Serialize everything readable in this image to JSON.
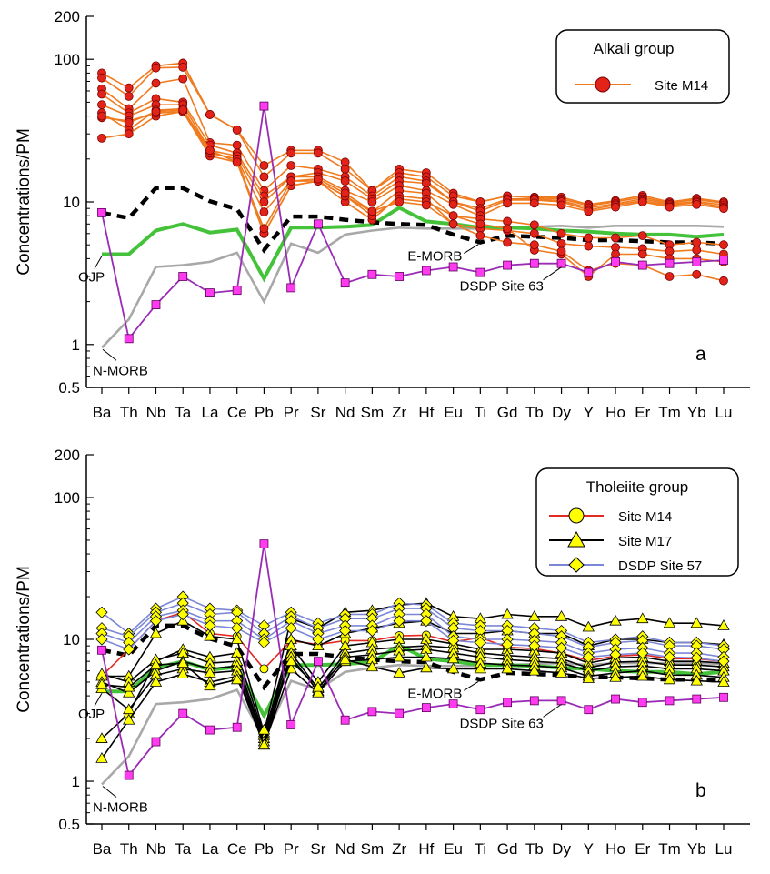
{
  "colors": {
    "alkali": "#f07a1e",
    "alkali_marker": "#e2231a",
    "m14_tholeiite": "#e22a24",
    "m17": "#000000",
    "dsdp57": "#7b87d6",
    "yellow_marker": "#ffff00",
    "dsdp63": "#9a2bb5",
    "dsdp63_marker": "#ff3bf0",
    "emorb": "#000000",
    "nmorb": "#a8a8a8",
    "ojp": "#43c23a"
  },
  "chart_data": [
    {
      "type": "line",
      "panel": "a",
      "ylabel": "Concentrations/PM",
      "y_scale": "log",
      "ylim": [
        0.5,
        200
      ],
      "y_ticks": [
        "0.5",
        "1",
        "10",
        "100",
        "200"
      ],
      "categories": [
        "Ba",
        "Th",
        "Nb",
        "Ta",
        "La",
        "Ce",
        "Pb",
        "Pr",
        "Sr",
        "Nd",
        "Sm",
        "Zr",
        "Hf",
        "Eu",
        "Ti",
        "Gd",
        "Tb",
        "Dy",
        "Y",
        "Ho",
        "Er",
        "Tm",
        "Yb",
        "Lu"
      ],
      "legend": {
        "title": "Alkali group",
        "entries": [
          "Site M14"
        ],
        "position": "top-right"
      },
      "annotations": {
        "ojp": "OJP",
        "emorb": "E-MORB",
        "nmorb": "N-MORB",
        "dsdp63": "DSDP Site 63"
      },
      "reference": {
        "ojp": [
          4.3,
          4.3,
          6.3,
          7.0,
          6.1,
          6.4,
          2.9,
          6.6,
          6.6,
          6.7,
          6.9,
          9.1,
          7.3,
          7.0,
          6.6,
          6.6,
          6.5,
          6.3,
          6.2,
          6.0,
          5.9,
          5.9,
          5.7,
          5.9
        ],
        "emorb": [
          8.4,
          7.7,
          12.5,
          12.5,
          10.1,
          8.9,
          4.6,
          7.9,
          7.9,
          7.5,
          7.2,
          7.0,
          6.9,
          5.9,
          5.2,
          5.8,
          5.7,
          5.6,
          5.4,
          5.4,
          5.3,
          5.2,
          5.2,
          5.1
        ],
        "nmorb": [
          0.95,
          1.5,
          3.5,
          3.6,
          3.8,
          4.4,
          2.0,
          5.1,
          4.4,
          5.9,
          6.3,
          6.6,
          6.5,
          6.5,
          6.5,
          6.6,
          6.7,
          6.8,
          6.6,
          6.8,
          6.8,
          6.8,
          6.8,
          6.7
        ],
        "dsdp63": [
          8.4,
          1.1,
          1.9,
          3.0,
          2.3,
          2.4,
          47,
          2.5,
          7.0,
          2.7,
          3.1,
          3.0,
          3.3,
          3.5,
          3.2,
          3.6,
          3.7,
          3.7,
          3.2,
          3.8,
          3.6,
          3.7,
          3.8,
          3.9
        ]
      },
      "series": [
        {
          "group": "Alkali Site M14",
          "values": [
            80,
            63,
            90,
            94,
            41,
            32,
            18,
            23,
            23,
            19,
            12,
            17,
            16,
            11.5,
            10,
            11,
            10.8,
            10.8,
            9.6,
            10.2,
            11.1,
            10.0,
            10.6,
            10.0
          ]
        },
        {
          "group": "Alkali Site M14",
          "values": [
            74,
            55,
            87,
            88,
            41,
            32,
            15,
            22,
            22,
            17,
            12,
            16,
            15,
            11,
            10,
            11,
            10.7,
            10.5,
            9.4,
            10,
            10.8,
            9.8,
            10.4,
            9.8
          ]
        },
        {
          "group": "Alkali Site M14",
          "values": [
            62,
            45,
            68,
            73,
            26,
            25,
            12,
            18,
            17,
            15,
            11,
            15,
            14,
            10,
            9,
            10.5,
            10.5,
            10.2,
            9.1,
            9.7,
            10.5,
            9.6,
            10.1,
            9.5
          ]
        },
        {
          "group": "Alkali Site M14",
          "values": [
            57,
            42,
            53,
            50,
            25,
            22,
            11,
            15,
            16,
            14,
            10.5,
            14,
            13.5,
            10,
            8.6,
            10.3,
            10.3,
            10,
            8.8,
            9.5,
            10.2,
            9.4,
            9.9,
            9.2
          ]
        },
        {
          "group": "Alkali Site M14",
          "values": [
            48,
            40,
            48,
            48,
            23,
            21,
            10,
            15,
            15,
            12,
            10,
            13,
            12,
            9.6,
            8,
            9.8,
            9.8,
            9.5,
            8.6,
            9.2,
            10,
            9.2,
            9.6,
            9.0
          ]
        },
        {
          "group": "Alkali Site M14",
          "values": [
            42,
            32,
            44,
            45,
            22,
            20,
            8.5,
            14,
            14,
            11,
            8.5,
            12,
            11.5,
            8,
            7.6,
            7.3,
            6.9,
            6,
            5.6,
            5.6,
            5.8,
            5.0,
            5.2,
            5.0
          ]
        },
        {
          "group": "Alkali Site M14",
          "values": [
            28,
            30,
            40,
            43,
            21,
            19,
            6,
            13,
            14,
            10,
            7.5,
            11,
            10.5,
            7,
            6.5,
            6.3,
            6,
            5.1,
            4.9,
            4.8,
            4.7,
            4.5,
            4.6,
            4.3
          ]
        },
        {
          "group": "Alkali Site M14",
          "values": [
            39,
            37,
            42,
            43,
            22,
            20,
            6,
            13,
            14,
            11,
            8,
            10.5,
            10,
            8,
            7,
            6.5,
            4.6,
            4.3,
            3.0,
            4.3,
            4.3,
            4.0,
            4.0,
            3.8
          ]
        },
        {
          "group": "Alkali Site M14",
          "values": [
            40,
            36,
            43,
            44,
            23,
            19,
            6.5,
            14,
            14.5,
            11.5,
            8.6,
            10,
            9.5,
            7,
            5.8,
            5.2,
            5.0,
            4.5,
            3.3,
            3.7,
            3.6,
            3.0,
            3.1,
            2.8
          ]
        }
      ]
    },
    {
      "type": "line",
      "panel": "b",
      "ylabel": "Concentrations/PM",
      "y_scale": "log",
      "ylim": [
        0.5,
        200
      ],
      "y_ticks": [
        "0.5",
        "1",
        "10",
        "100",
        "200"
      ],
      "categories": [
        "Ba",
        "Th",
        "Nb",
        "Ta",
        "La",
        "Ce",
        "Pb",
        "Pr",
        "Sr",
        "Nd",
        "Sm",
        "Zr",
        "Hf",
        "Eu",
        "Ti",
        "Gd",
        "Tb",
        "Dy",
        "Y",
        "Ho",
        "Er",
        "Tm",
        "Yb",
        "Lu"
      ],
      "legend": {
        "title": "Tholeiite group",
        "entries": [
          "Site M14",
          "Site M17",
          "DSDP Site 57"
        ],
        "position": "top-right"
      },
      "annotations": {
        "ojp": "OJP",
        "emorb": "E-MORB",
        "nmorb": "N-MORB",
        "dsdp63": "DSDP Site 63"
      },
      "reference": {
        "ojp": [
          4.3,
          4.3,
          6.3,
          7.0,
          6.1,
          6.4,
          2.9,
          6.6,
          6.6,
          6.7,
          6.9,
          9.1,
          7.3,
          7.0,
          6.6,
          6.6,
          6.5,
          6.3,
          6.2,
          6.0,
          5.9,
          5.9,
          5.7,
          5.9
        ],
        "emorb": [
          8.4,
          7.7,
          12.5,
          12.5,
          10.1,
          8.9,
          4.6,
          7.9,
          7.9,
          7.5,
          7.2,
          7.0,
          6.9,
          5.9,
          5.2,
          5.8,
          5.7,
          5.6,
          5.4,
          5.4,
          5.3,
          5.2,
          5.2,
          5.1
        ],
        "nmorb": [
          0.95,
          1.5,
          3.5,
          3.6,
          3.8,
          4.4,
          2.0,
          5.1,
          4.4,
          5.9,
          6.3,
          6.6,
          6.5,
          6.5,
          6.5,
          6.6,
          6.7,
          6.8,
          6.6,
          6.8,
          6.8,
          6.8,
          6.8,
          6.7
        ],
        "dsdp63": [
          8.4,
          1.1,
          1.9,
          3.0,
          2.3,
          2.4,
          47,
          2.5,
          7.0,
          2.7,
          3.1,
          3.0,
          3.3,
          3.5,
          3.2,
          3.6,
          3.7,
          3.7,
          3.2,
          3.8,
          3.6,
          3.7,
          3.8,
          3.9
        ]
      },
      "series": [
        {
          "group": "Site M14",
          "values": [
            5.5,
            8.5,
            13.5,
            15.5,
            11,
            10.5,
            6.2,
            9.8,
            9.2,
            9.8,
            9.8,
            10.6,
            10.7,
            9.6,
            10.3,
            8.8,
            8.6,
            8.0,
            7.1,
            7.6,
            7.8,
            7.3,
            7.3,
            7.0
          ]
        },
        {
          "group": "Site M17",
          "values": [
            5.5,
            5.5,
            11,
            13.5,
            10.5,
            10,
            2.2,
            14,
            12,
            15.5,
            16,
            17.5,
            18,
            14.5,
            14,
            15,
            14.5,
            14.5,
            12.2,
            13.5,
            14,
            13,
            13,
            12.5
          ]
        },
        {
          "group": "Site M17",
          "values": [
            2.0,
            3.0,
            7.0,
            8.5,
            7.5,
            8.0,
            2.1,
            10,
            9,
            11,
            12,
            13,
            13.5,
            11,
            11,
            11.5,
            11,
            11,
            9,
            10,
            10,
            9.5,
            9.5,
            9.2
          ]
        },
        {
          "group": "Site M17",
          "values": [
            5.7,
            5.0,
            7.2,
            8.0,
            6.8,
            7.0,
            2.0,
            9,
            5,
            9,
            9.5,
            10,
            10,
            9.3,
            8.5,
            8.5,
            8.3,
            8,
            6.8,
            7.4,
            7.5,
            7,
            7,
            6.8
          ]
        },
        {
          "group": "Site M17",
          "values": [
            5.0,
            4.2,
            6.0,
            7.0,
            6.2,
            6.5,
            1.9,
            8,
            4.5,
            8,
            8.5,
            8.8,
            9,
            8.7,
            8,
            7.7,
            7.5,
            7.3,
            6.3,
            6.9,
            7,
            6.6,
            6.6,
            6.4
          ]
        },
        {
          "group": "Site M17",
          "values": [
            4.5,
            3.2,
            5.6,
            6.2,
            5.8,
            6.0,
            1.8,
            7.5,
            4.3,
            7.5,
            7.8,
            8.3,
            8.5,
            8,
            7.5,
            7.2,
            7,
            6.8,
            6,
            6.4,
            6.5,
            6.2,
            6.2,
            6.0
          ]
        },
        {
          "group": "Site M17",
          "values": [
            1.45,
            2.7,
            5.0,
            5.7,
            5.0,
            5.5,
            1.8,
            6.2,
            4.2,
            7.0,
            7.2,
            7.5,
            7.5,
            7.3,
            6.8,
            6.6,
            6.5,
            6.3,
            5.5,
            5.8,
            6,
            5.6,
            5.6,
            5.4
          ]
        },
        {
          "group": "Site M17",
          "values": [
            4.8,
            4.6,
            6.6,
            6.8,
            4.7,
            5.2,
            2.3,
            7,
            4.6,
            7.2,
            6.4,
            5.8,
            6.3,
            6.2,
            6.2,
            6.2,
            6,
            5.8,
            5.3,
            5.4,
            5.5,
            5.2,
            5.1,
            5.0
          ]
        },
        {
          "group": "DSDP Site 57",
          "values": [
            15.5,
            11,
            16.5,
            20,
            16.5,
            16,
            12.5,
            15.5,
            13,
            15,
            15,
            18,
            17.5,
            13,
            12.5,
            12.5,
            12,
            11.5,
            9.5,
            10,
            10.5,
            9.5,
            9.5,
            9.0
          ]
        },
        {
          "group": "DSDP Site 57",
          "values": [
            12,
            10.5,
            15.5,
            18,
            15,
            15.5,
            11,
            14.5,
            12,
            14,
            14,
            16.5,
            16.5,
            12,
            11.5,
            11.5,
            11,
            10.5,
            8.8,
            9.5,
            9.8,
            9,
            9,
            8.5
          ]
        },
        {
          "group": "DSDP Site 57",
          "values": [
            11,
            9.5,
            14.5,
            16,
            13.5,
            13.5,
            10,
            13.5,
            11,
            12.5,
            12.5,
            15,
            15,
            10.5,
            10,
            10,
            9.8,
            9.5,
            8,
            8.5,
            8.7,
            8,
            8,
            7.5
          ]
        },
        {
          "group": "DSDP Site 57",
          "values": [
            10,
            8.5,
            13.5,
            15,
            12.5,
            12,
            9.5,
            12,
            10,
            11.5,
            11.5,
            13.5,
            13.5,
            9.8,
            9.5,
            9.2,
            9,
            8.7,
            7.5,
            7.8,
            8,
            7.5,
            7.4,
            7.0
          ]
        }
      ]
    }
  ]
}
